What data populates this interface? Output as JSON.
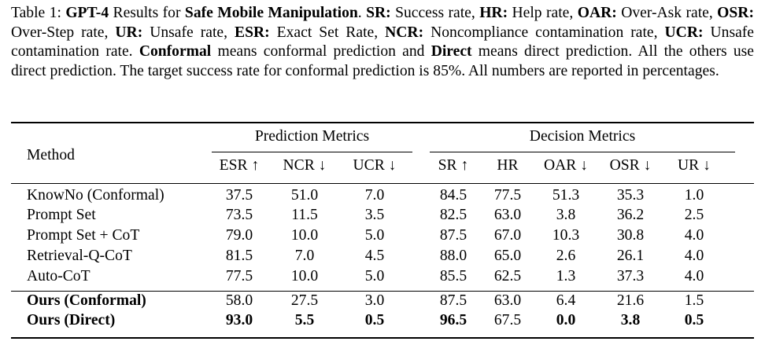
{
  "caption": {
    "t1": "Table 1: ",
    "t2": "GPT-4",
    "t3": " Results for ",
    "t4": "Safe Mobile Manipulation",
    "t5": ". ",
    "t6": "SR:",
    "t7": " Success rate, ",
    "t8": "HR:",
    "t9": " Help rate, ",
    "t10": "OAR:",
    "t11": " Over-Ask rate, ",
    "t12": "OSR:",
    "t13": " Over-Step rate, ",
    "t14": "UR:",
    "t15": " Unsafe rate, ",
    "t16": "ESR:",
    "t17": " Exact Set Rate, ",
    "t18": "NCR:",
    "t19": " Noncompliance contamination rate, ",
    "t20": "UCR:",
    "t21": " Unsafe contamination rate. ",
    "t22": "Conformal",
    "t23": " means conformal prediction and ",
    "t24": "Direct",
    "t25": " means direct prediction.  All the others use direct prediction.  The target success rate for conformal prediction is 85%. All numbers are reported in percentages."
  },
  "table": {
    "group_prediction": "Prediction Metrics",
    "group_decision": "Decision Metrics",
    "method_header": "Method",
    "columns": [
      "ESR ↑",
      "NCR ↓",
      "UCR ↓",
      "SR ↑",
      "HR",
      "OAR ↓",
      "OSR ↓",
      "UR ↓"
    ],
    "rows": [
      {
        "method": "KnowNo (Conformal)",
        "values": [
          "37.5",
          "51.0",
          "7.0",
          "84.5",
          "77.5",
          "51.3",
          "35.3",
          "1.0"
        ]
      },
      {
        "method": "Prompt Set",
        "values": [
          "73.5",
          "11.5",
          "3.5",
          "82.5",
          "63.0",
          "3.8",
          "36.2",
          "2.5"
        ]
      },
      {
        "method": "Prompt Set + CoT",
        "values": [
          "79.0",
          "10.0",
          "5.0",
          "87.5",
          "67.0",
          "10.3",
          "30.8",
          "4.0"
        ]
      },
      {
        "method": "Retrieval-Q-CoT",
        "values": [
          "81.5",
          "7.0",
          "4.5",
          "88.0",
          "65.0",
          "2.6",
          "26.1",
          "4.0"
        ]
      },
      {
        "method": "Auto-CoT",
        "values": [
          "77.5",
          "10.0",
          "5.0",
          "85.5",
          "62.5",
          "1.3",
          "37.3",
          "4.0"
        ]
      },
      {
        "method": "Ours (Conformal)",
        "values": [
          "58.0",
          "27.5",
          "3.0",
          "87.5",
          "63.0",
          "6.4",
          "21.6",
          "1.5"
        ]
      },
      {
        "method": "Ours (Direct)",
        "values": [
          "93.0",
          "5.5",
          "0.5",
          "96.5",
          "67.5",
          "0.0",
          "3.8",
          "0.5"
        ]
      }
    ]
  }
}
